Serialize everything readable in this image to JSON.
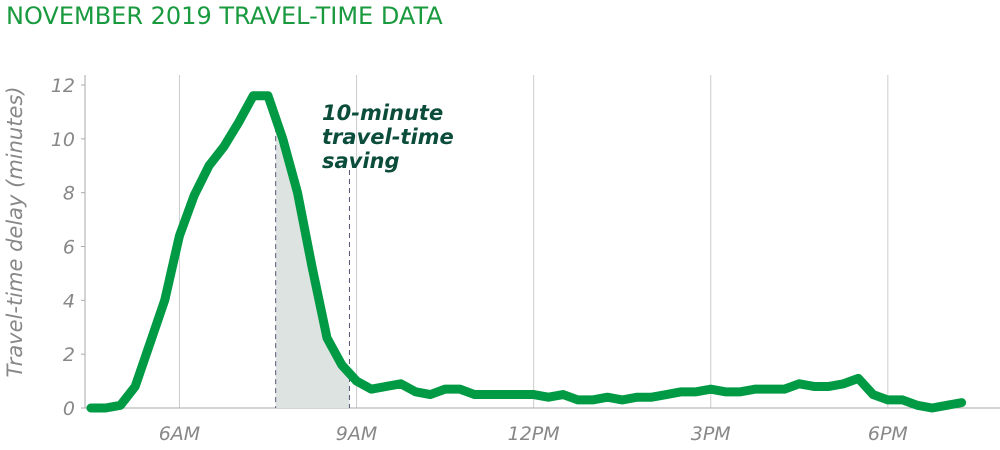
{
  "chart_data": {
    "type": "line",
    "title": "NOVEMBER 2019 TRAVEL-TIME DATA",
    "y_label": "Travel-time delay (minutes)",
    "annotation": [
      "10-minute",
      "travel-time",
      "saving"
    ],
    "shaded_range": [
      7.63,
      8.88
    ],
    "x": [
      4.5,
      4.75,
      5,
      5.25,
      5.5,
      5.75,
      6,
      6.25,
      6.5,
      6.75,
      7,
      7.25,
      7.5,
      7.75,
      8,
      8.25,
      8.5,
      8.75,
      9,
      9.25,
      9.5,
      9.75,
      10,
      10.25,
      10.5,
      10.75,
      11,
      11.25,
      11.5,
      11.75,
      12,
      12.25,
      12.5,
      12.75,
      13,
      13.25,
      13.5,
      13.75,
      14,
      14.25,
      14.5,
      14.75,
      15,
      15.25,
      15.5,
      15.75,
      16,
      16.25,
      16.5,
      16.75,
      17,
      17.25,
      17.5,
      17.75,
      18,
      18.25,
      18.5,
      18.75,
      19,
      19.25
    ],
    "series": [
      {
        "name": "Travel-time delay",
        "color": "#009a44",
        "values": [
          0,
          0,
          0.1,
          0.8,
          2.4,
          4,
          6.4,
          7.9,
          9,
          9.7,
          10.6,
          11.6,
          11.6,
          10,
          8,
          5.2,
          2.6,
          1.6,
          1,
          0.7,
          0.8,
          0.9,
          0.6,
          0.5,
          0.7,
          0.7,
          0.5,
          0.5,
          0.5,
          0.5,
          0.5,
          0.4,
          0.5,
          0.3,
          0.3,
          0.4,
          0.3,
          0.4,
          0.4,
          0.5,
          0.6,
          0.6,
          0.7,
          0.6,
          0.6,
          0.7,
          0.7,
          0.7,
          0.9,
          0.8,
          0.8,
          0.9,
          1.1,
          0.5,
          0.3,
          0.3,
          0.1,
          0,
          0.1,
          0.2
        ]
      }
    ],
    "xlim": [
      4.4,
      19.9
    ],
    "xticks": [
      {
        "value": 6,
        "label": "6AM"
      },
      {
        "value": 9,
        "label": "9AM"
      },
      {
        "value": 12,
        "label": "12PM"
      },
      {
        "value": 15,
        "label": "3PM"
      },
      {
        "value": 18,
        "label": "6PM"
      }
    ],
    "ylim": [
      0,
      12
    ],
    "yticks": [
      0,
      2,
      4,
      6,
      8,
      10,
      12
    ],
    "grid": true
  }
}
